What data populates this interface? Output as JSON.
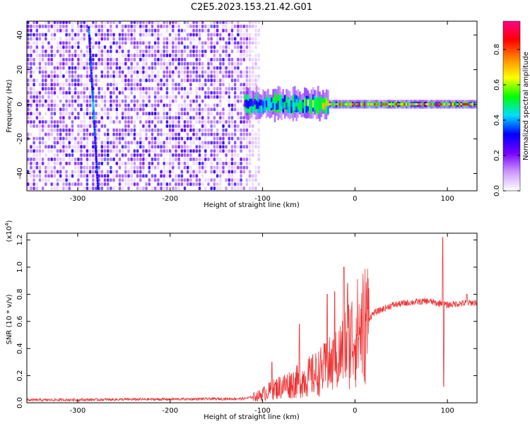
{
  "title": "C2E5.2023.153.21.42.G01",
  "chart_data": [
    {
      "type": "heatmap",
      "xlabel": "Height of straight line (km)",
      "ylabel": "Frequency (Hz)",
      "xlim": [
        -355,
        132
      ],
      "ylim": [
        -50,
        48
      ],
      "xticks": [
        -300,
        -200,
        -100,
        0,
        100
      ],
      "yticks": [
        -40,
        -20,
        0,
        20,
        40
      ],
      "colorbar": {
        "label": "Normalized spectral amplitude",
        "range": [
          0,
          0.96
        ],
        "ticks": [
          "0.0",
          "0.2",
          "0.4",
          "0.6",
          "0.8"
        ],
        "tick_values": [
          0,
          0.2,
          0.4,
          0.6,
          0.8
        ],
        "colors": [
          "#ffffff",
          "#cc99ff",
          "#7700ff",
          "#0000ff",
          "#00ddff",
          "#00ff00",
          "#ffff00",
          "#ff8800",
          "#ff0000",
          "#ff0088"
        ]
      },
      "features": {
        "broadband_noise_x_range": [
          -355,
          -105
        ],
        "noise_amplitude_range": [
          0.1,
          0.3
        ],
        "tone_line_x_range": [
          -120,
          132
        ],
        "tone_frequency_hz": 0,
        "tone_amplitude_peak": 0.9,
        "drifting_line": {
          "x_start": -288,
          "y_start": 45,
          "x_end": -278,
          "y_end": -48
        }
      }
    },
    {
      "type": "line",
      "xlabel": "Height of straight line (km)",
      "ylabel": "SNR (10 * v/v)",
      "y_multiplier": "(x10",
      "y_multiplier_exp": "4",
      "y_multiplier_close": ")",
      "xlim": [
        -355,
        132
      ],
      "ylim": [
        0,
        1.25
      ],
      "xticks": [
        -300,
        -200,
        -100,
        0,
        100
      ],
      "yticks": [
        "0.0",
        "0.2",
        "0.4",
        "0.6",
        "0.8",
        "1.0",
        "1.2"
      ],
      "ytick_values": [
        0,
        0.2,
        0.4,
        0.6,
        0.8,
        1.0,
        1.2
      ],
      "series": [
        {
          "color": "#ee3333",
          "envelope_x": [
            -355,
            -120,
            -105,
            -95,
            -80,
            -60,
            -40,
            -20,
            -10,
            0,
            10,
            20,
            40,
            60,
            80,
            90,
            93,
            96,
            99,
            110,
            132
          ],
          "envelope_y": [
            0.02,
            0.03,
            0.05,
            0.08,
            0.12,
            0.16,
            0.22,
            0.3,
            0.42,
            0.5,
            0.58,
            0.66,
            0.72,
            0.74,
            0.75,
            0.73,
            0.74,
            0.73,
            0.72,
            0.73,
            0.74
          ],
          "spikes": [
            {
              "x": -12,
              "y": 1.0
            },
            {
              "x": -8,
              "y": 0.88
            },
            {
              "x": -22,
              "y": 0.82
            },
            {
              "x": -30,
              "y": 0.8
            },
            {
              "x": -60,
              "y": 0.58
            },
            {
              "x": -90,
              "y": 0.3
            },
            {
              "x": 95,
              "y": 1.22
            },
            {
              "x": 96,
              "y": 0.12
            },
            {
              "x": 10,
              "y": 0.2
            },
            {
              "x": 121,
              "y": 0.8
            }
          ]
        }
      ]
    }
  ]
}
